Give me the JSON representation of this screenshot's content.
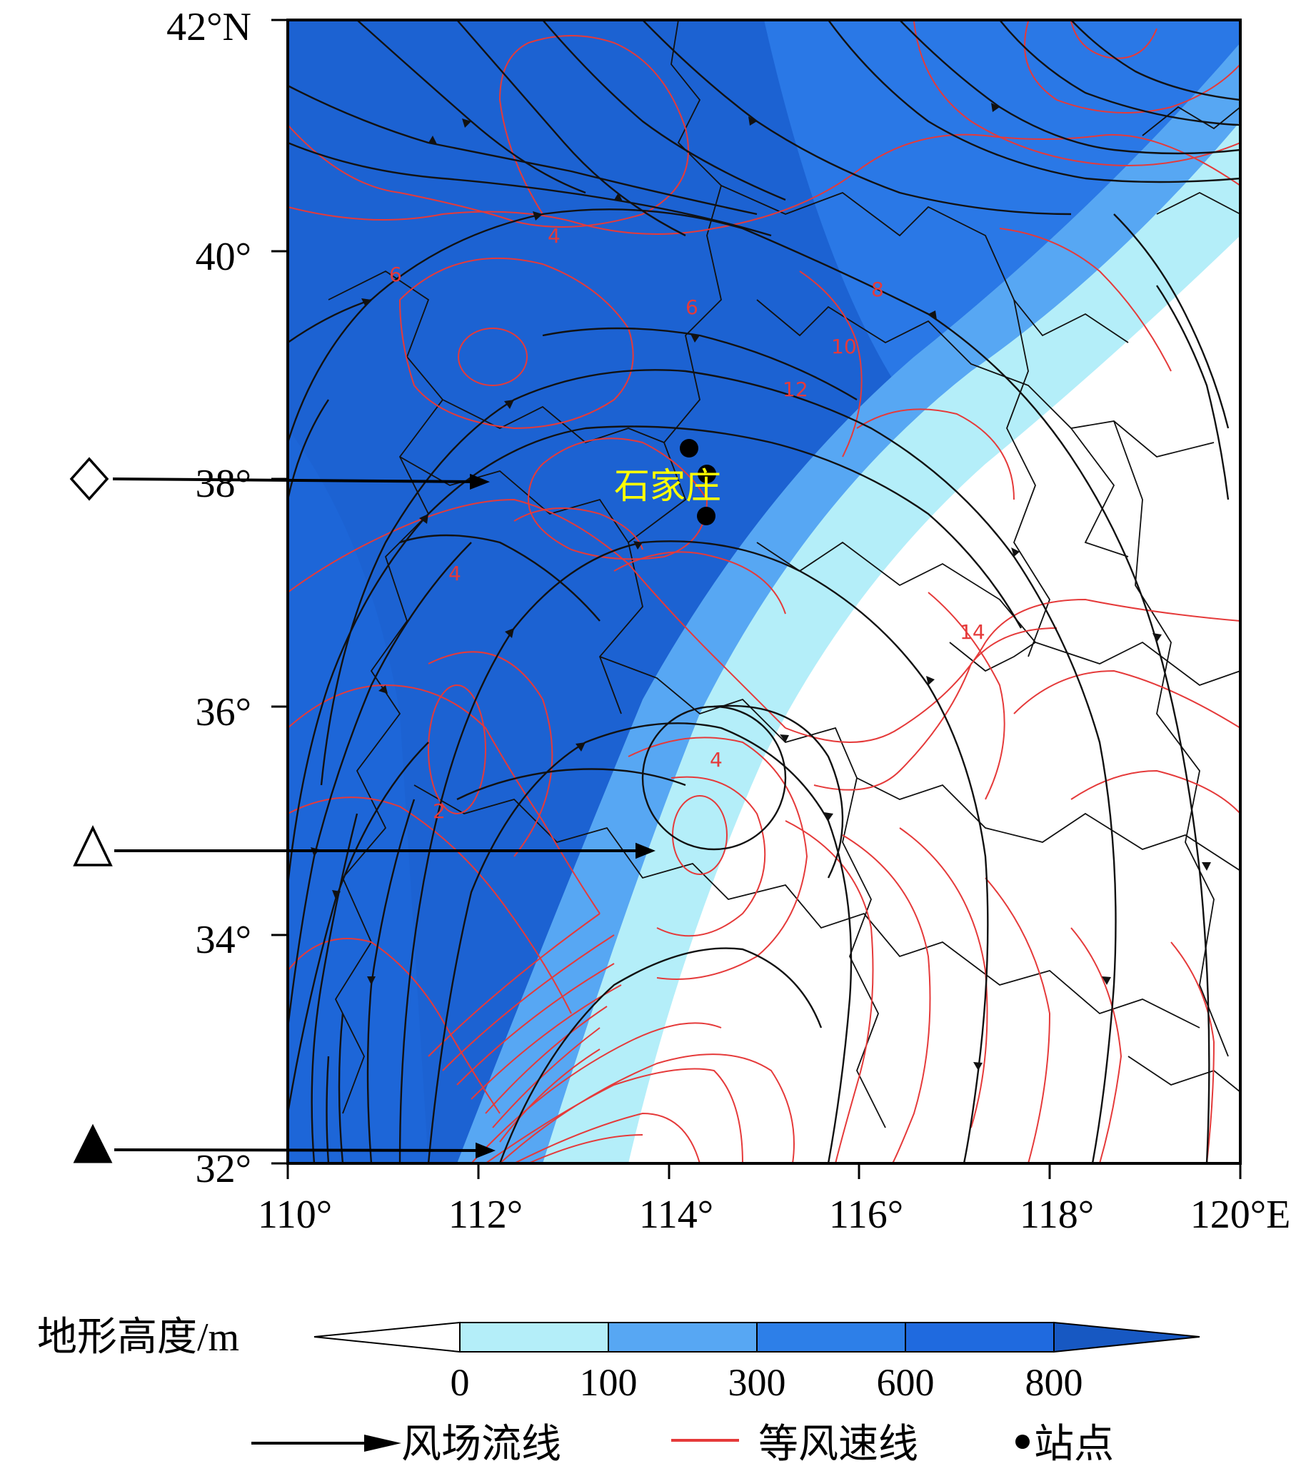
{
  "map": {
    "lat_labels": [
      "42°N",
      "40°",
      "38°",
      "36°",
      "34°",
      "32°"
    ],
    "lon_labels": [
      "110°",
      "112°",
      "114°",
      "116°",
      "118°",
      "120°E"
    ],
    "city": "石家庄",
    "contour_labels": [
      "4",
      "6",
      "6",
      "8",
      "10",
      "12",
      "14",
      "4",
      "2",
      "4"
    ],
    "markers": [
      {
        "symbol": "diamond-open",
        "lat": 38.0
      },
      {
        "symbol": "triangle-open",
        "lat": 34.8
      },
      {
        "symbol": "triangle-filled",
        "lat": 32.2
      }
    ],
    "stations": [
      {
        "lat": 38.3,
        "lon": 114.3
      },
      {
        "lat": 38.05,
        "lon": 114.4
      },
      {
        "lat": 37.65,
        "lon": 114.45
      }
    ]
  },
  "legend": {
    "terrain_title": "地形高度/m",
    "terrain_values": [
      "0",
      "100",
      "300",
      "600",
      "800"
    ],
    "terrain_colors": [
      "#ffffff",
      "#b3eef8",
      "#55a6f4",
      "#2d7fe8",
      "#1f6adf",
      "#1758c2"
    ],
    "streamline_label": "风场流线",
    "isotach_label": "等风速线",
    "station_label": "站点",
    "isotach_color": "#e53a3a"
  }
}
